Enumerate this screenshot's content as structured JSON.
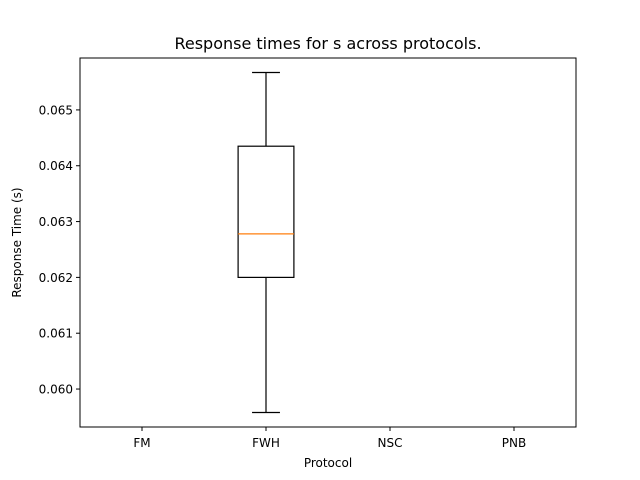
{
  "chart_data": {
    "type": "box",
    "title": "Response times for s across protocols.",
    "xlabel": "Protocol",
    "ylabel": "Response Time (s)",
    "categories": [
      "FM",
      "FWH",
      "NSC",
      "PNB"
    ],
    "boxes": [
      {
        "category": "FM",
        "whisker_low": null,
        "q1": null,
        "median": null,
        "q3": null,
        "whisker_high": null
      },
      {
        "category": "FWH",
        "whisker_low": 0.05958,
        "q1": 0.062,
        "median": 0.06278,
        "q3": 0.06435,
        "whisker_high": 0.06567
      },
      {
        "category": "NSC",
        "whisker_low": null,
        "q1": null,
        "median": null,
        "q3": null,
        "whisker_high": null
      },
      {
        "category": "PNB",
        "whisker_low": null,
        "q1": null,
        "median": null,
        "q3": null,
        "whisker_high": null
      }
    ],
    "ylim": [
      0.05932,
      0.06593
    ],
    "yticks": [
      0.06,
      0.061,
      0.062,
      0.063,
      0.064,
      0.065
    ],
    "ytick_labels": [
      "0.060",
      "0.061",
      "0.062",
      "0.063",
      "0.064",
      "0.065"
    ],
    "grid": false,
    "legend": "none",
    "colors": {
      "box": "#000000",
      "median": "#ff7f0e",
      "axes": "#000000"
    }
  }
}
